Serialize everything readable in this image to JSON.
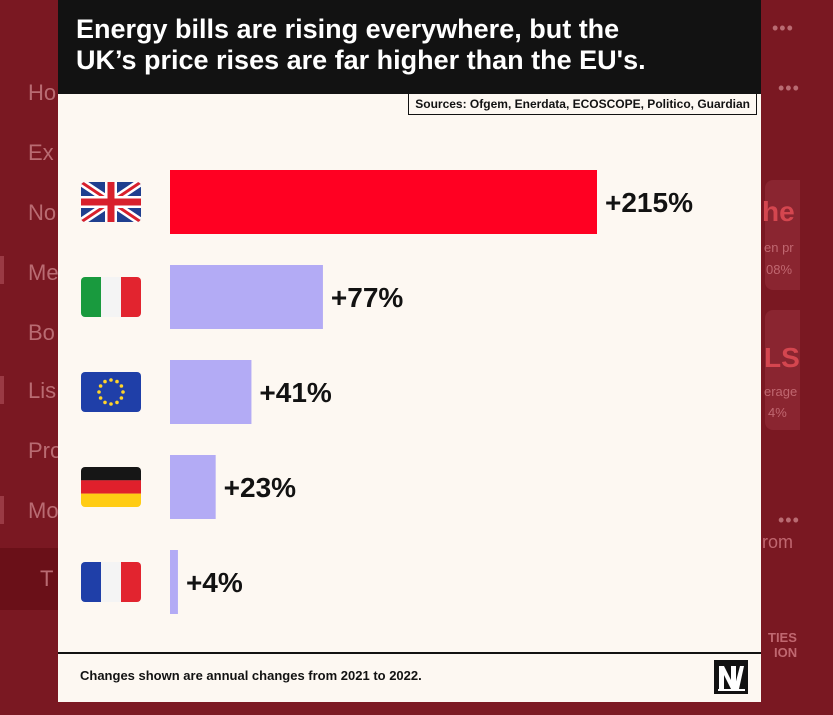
{
  "chart_data": {
    "type": "bar",
    "orientation": "horizontal",
    "title": "Energy bills are rising everywhere, but the\nUK’s price rises are far higher than the EU's.",
    "source": "Sources: Ofgem, Enerdata, ECOSCOPE, Politico, Guardian",
    "note": "Changes shown are annual changes from 2021 to 2022.",
    "categories": [
      "UK",
      "Italy",
      "EU",
      "Germany",
      "France"
    ],
    "values": [
      215,
      77,
      41,
      23,
      4
    ],
    "labels": [
      "+215%",
      "+77%",
      "+41%",
      "+23%",
      "+4%"
    ],
    "colors": [
      "#ff0022",
      "#b3abf5",
      "#b3abf5",
      "#b3abf5",
      "#b3abf5"
    ],
    "xlim": [
      0,
      215
    ],
    "grid": false,
    "legend": "none"
  },
  "flag_icons": [
    "uk-flag-icon",
    "italy-flag-icon",
    "eu-flag-icon",
    "germany-flag-icon",
    "france-flag-icon"
  ],
  "background": {
    "nav_items": [
      "Ho",
      "Ex",
      "No",
      "Me",
      "Bo",
      "Lis",
      "Pro",
      "Mo"
    ],
    "active_item": "T",
    "right_fragments": [
      "he",
      "en pr",
      "08%",
      "LS",
      "erage",
      "4%",
      "rom",
      "TIES",
      "ION"
    ]
  }
}
